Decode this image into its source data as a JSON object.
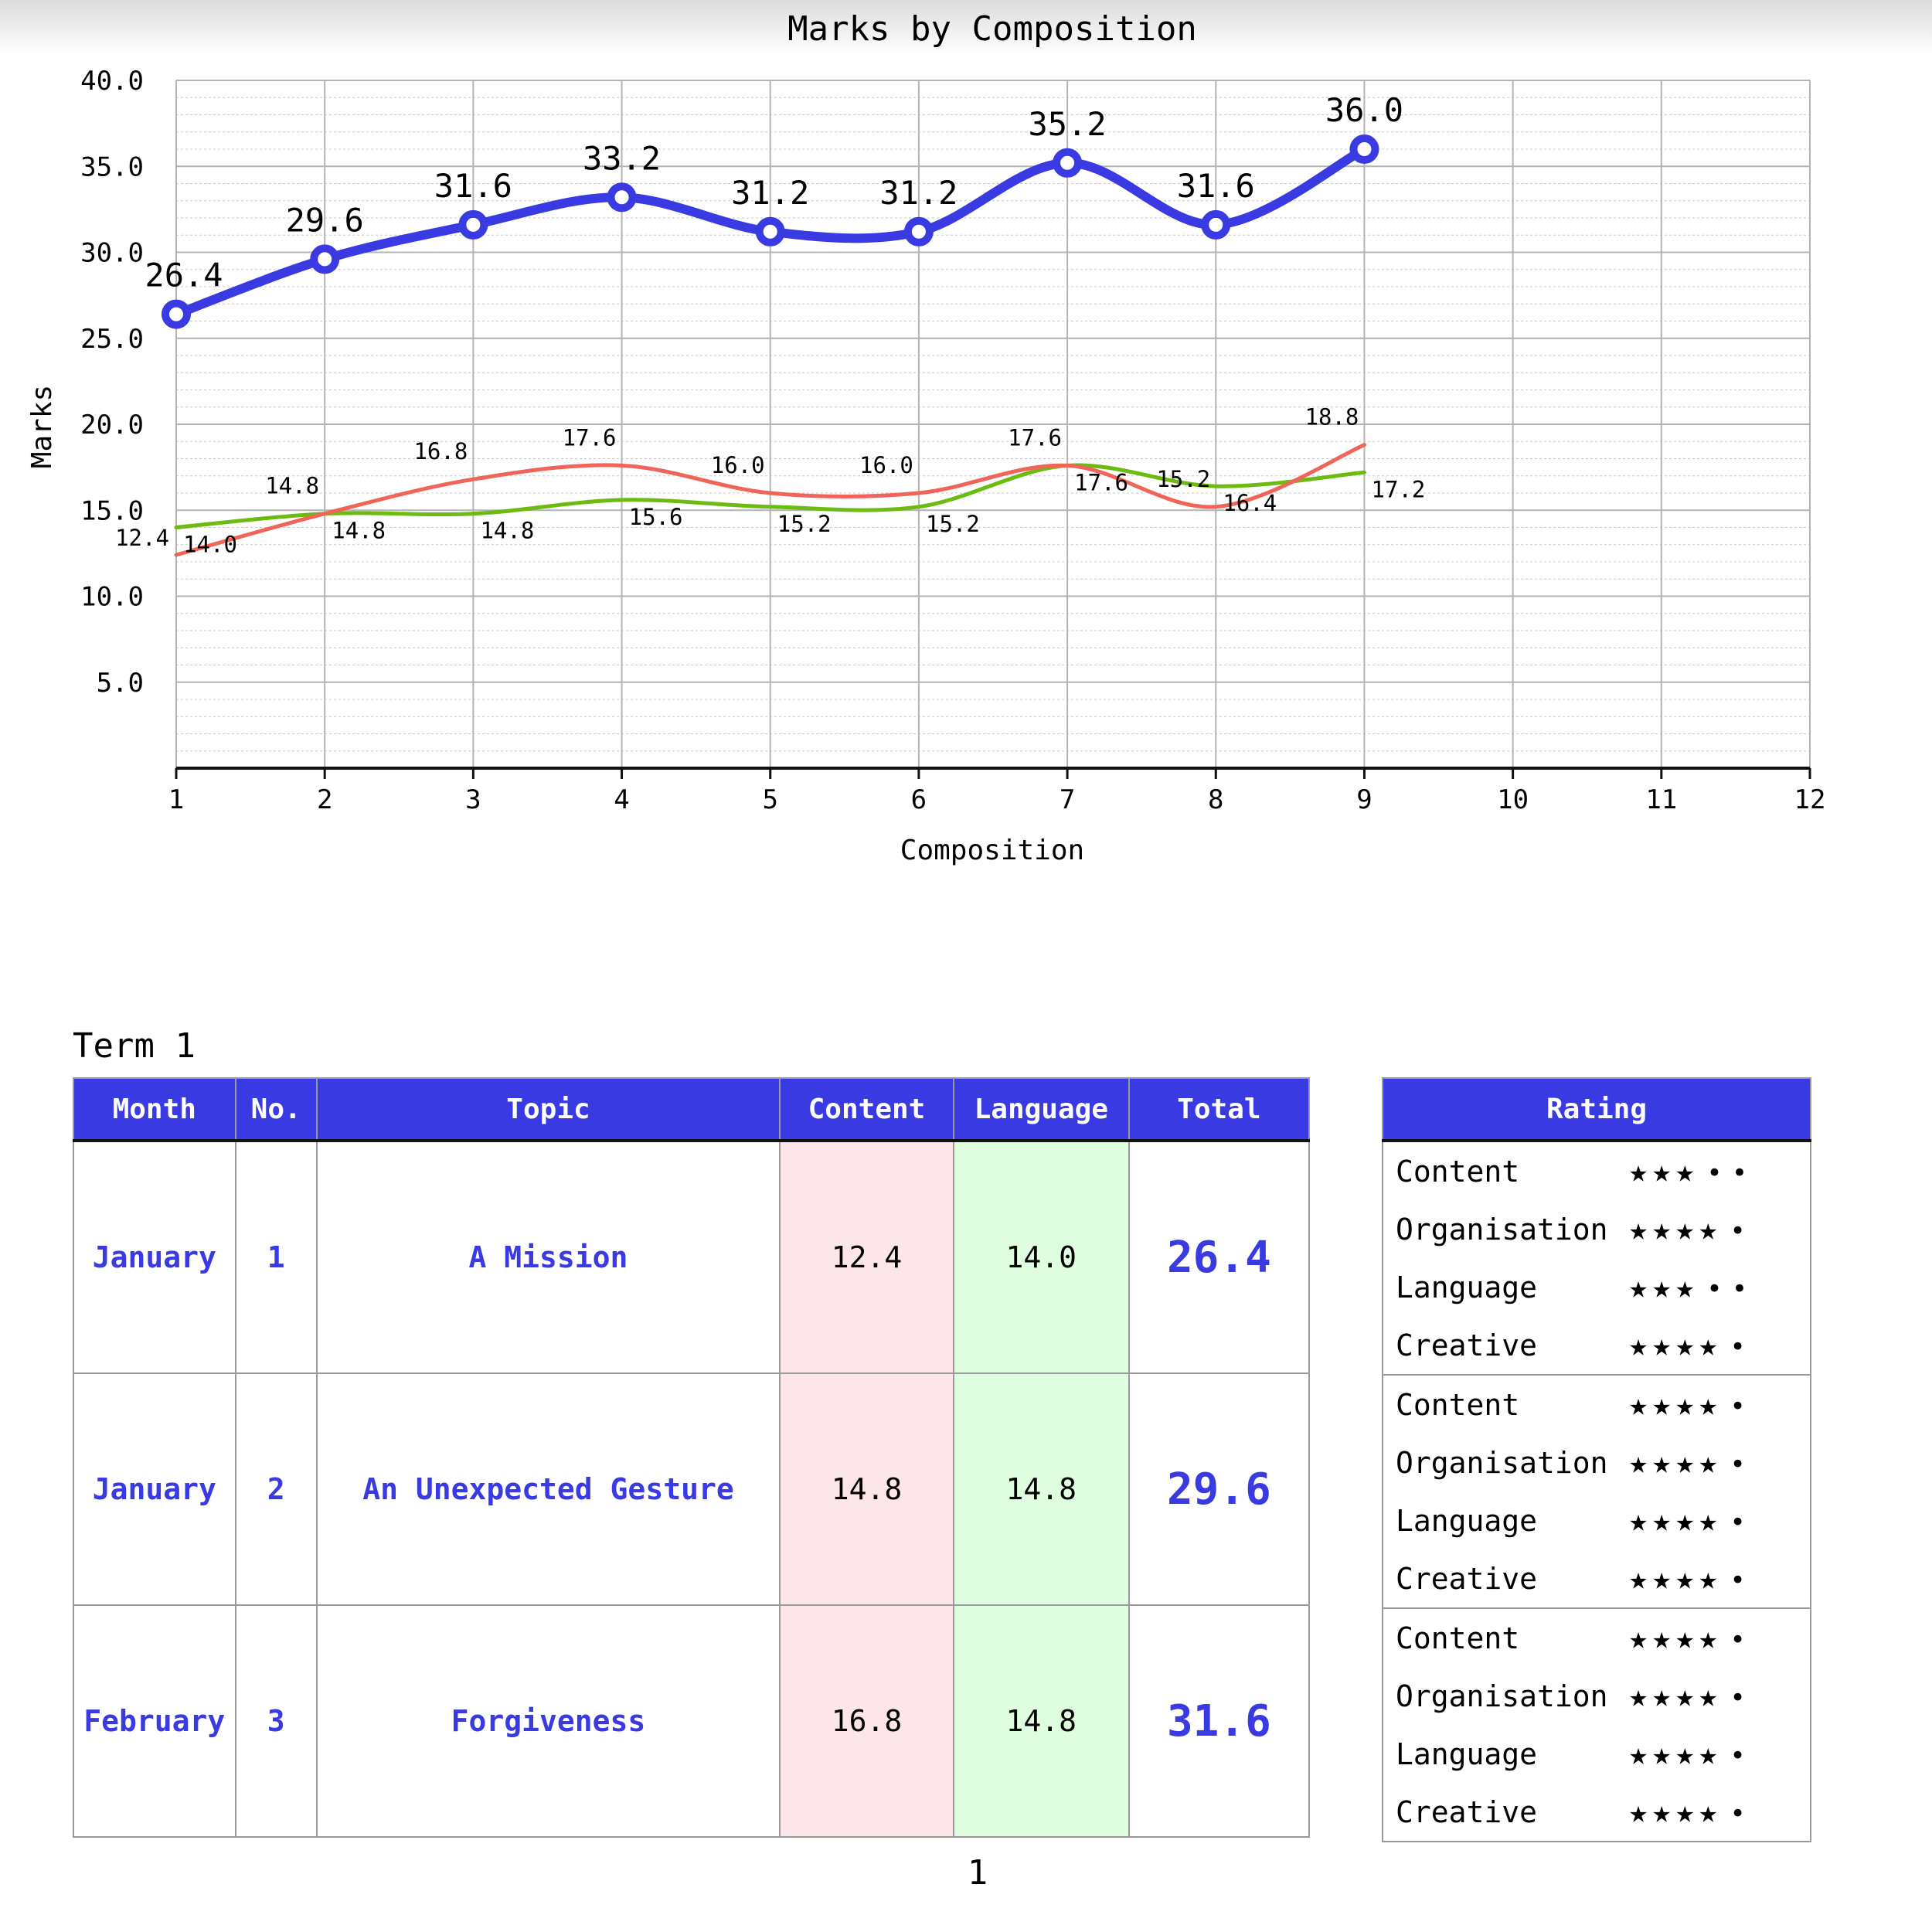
{
  "chart_data": {
    "type": "line",
    "title": "Marks by Composition",
    "xlabel": "Composition",
    "ylabel": "Marks",
    "xlim": [
      1,
      12
    ],
    "ylim": [
      0,
      40
    ],
    "x_ticks": [
      "1",
      "2",
      "3",
      "4",
      "5",
      "6",
      "7",
      "8",
      "9",
      "10",
      "11",
      "12"
    ],
    "y_ticks": [
      "5.0",
      "10.0",
      "15.0",
      "20.0",
      "25.0",
      "30.0",
      "35.0",
      "40.0"
    ],
    "grid": true,
    "x": [
      1,
      2,
      3,
      4,
      5,
      6,
      7,
      8,
      9
    ],
    "series": [
      {
        "color": "#3a3ae3",
        "values": [
          26.4,
          29.6,
          31.6,
          33.2,
          31.2,
          31.2,
          35.2,
          31.6,
          36.0
        ],
        "labels": [
          "26.4",
          "29.6",
          "31.6",
          "33.2",
          "31.2",
          "31.2",
          "35.2",
          "31.6",
          "36.0"
        ]
      },
      {
        "color": "#f0645a",
        "values": [
          12.4,
          14.8,
          16.8,
          17.6,
          16.0,
          16.0,
          17.6,
          15.2,
          18.8
        ],
        "labels": [
          "12.4",
          "14.8",
          "16.8",
          "17.6",
          "16.0",
          "16.0",
          "17.6",
          "15.2",
          "18.8"
        ]
      },
      {
        "color": "#6cbb10",
        "values": [
          14.0,
          14.8,
          14.8,
          15.6,
          15.2,
          15.2,
          17.6,
          16.4,
          17.2
        ],
        "labels": [
          "14.0",
          "14.8",
          "14.8",
          "15.6",
          "15.2",
          "15.2",
          "17.6",
          "16.4",
          "17.2"
        ]
      }
    ]
  },
  "term": {
    "label": "Term 1"
  },
  "table": {
    "headers": [
      "Month",
      "No.",
      "Topic",
      "Content",
      "Language",
      "Total"
    ],
    "rows": [
      {
        "month": "January",
        "no": "1",
        "topic": "A Mission",
        "content": "12.4",
        "language": "14.0",
        "total": "26.4"
      },
      {
        "month": "January",
        "no": "2",
        "topic": "An Unexpected Gesture",
        "content": "14.8",
        "language": "14.8",
        "total": "29.6"
      },
      {
        "month": "February",
        "no": "3",
        "topic": "Forgiveness",
        "content": "16.8",
        "language": "14.8",
        "total": "31.6"
      }
    ]
  },
  "rating": {
    "header": "Rating",
    "groups": [
      [
        {
          "label": "Content",
          "stars": 3,
          "max": 5
        },
        {
          "label": "Organisation",
          "stars": 4,
          "max": 5
        },
        {
          "label": "Language",
          "stars": 3,
          "max": 5
        },
        {
          "label": "Creative",
          "stars": 4,
          "max": 5
        }
      ],
      [
        {
          "label": "Content",
          "stars": 4,
          "max": 5
        },
        {
          "label": "Organisation",
          "stars": 4,
          "max": 5
        },
        {
          "label": "Language",
          "stars": 4,
          "max": 5
        },
        {
          "label": "Creative",
          "stars": 4,
          "max": 5
        }
      ],
      [
        {
          "label": "Content",
          "stars": 4,
          "max": 5
        },
        {
          "label": "Organisation",
          "stars": 4,
          "max": 5
        },
        {
          "label": "Language",
          "stars": 4,
          "max": 5
        },
        {
          "label": "Creative",
          "stars": 4,
          "max": 5
        }
      ]
    ]
  },
  "page": {
    "number": "1"
  },
  "colors": {
    "accent": "#3a3ae3",
    "content_bg": "#fde6ea",
    "language_bg": "#dffddf"
  }
}
